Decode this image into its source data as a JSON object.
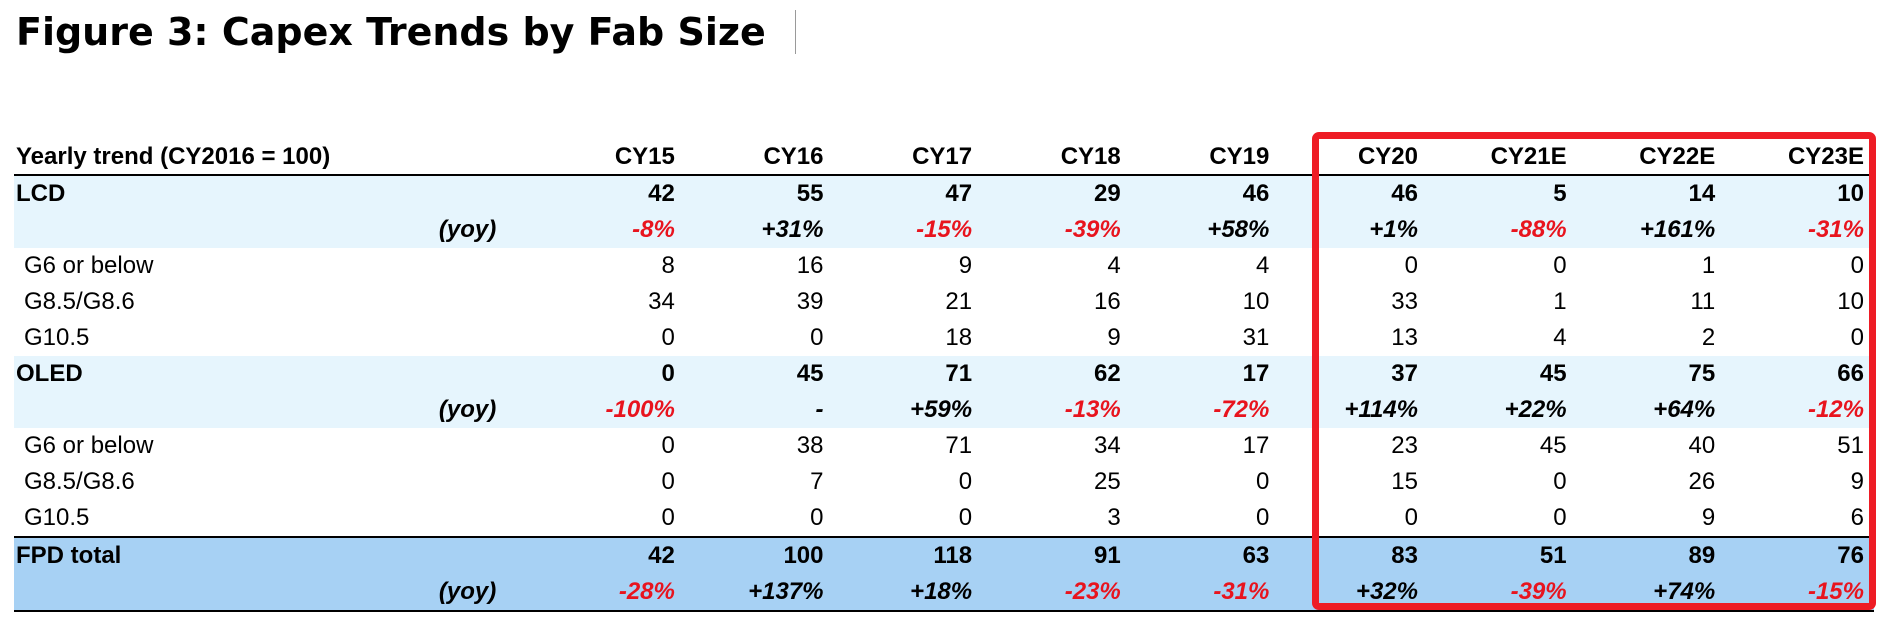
{
  "figure_title": "Figure 3: Capex Trends by Fab Size",
  "colors": {
    "negative": "#e8141e",
    "positive": "#000000",
    "band": "#e6f5fd",
    "band_total": "#a7d1f4",
    "highlight": "#ee1c25"
  },
  "table": {
    "header_label": "Yearly trend (CY2016 = 100)",
    "columns": [
      "CY15",
      "CY16",
      "CY17",
      "CY18",
      "CY19",
      "CY20",
      "CY21E",
      "CY22E",
      "CY23E"
    ],
    "lcd": {
      "label": "LCD",
      "values": [
        "42",
        "55",
        "47",
        "29",
        "46",
        "46",
        "5",
        "14",
        "10"
      ],
      "yoy_label": "(yoy)",
      "yoy": [
        "-8%",
        "+31%",
        "-15%",
        "-39%",
        "+58%",
        "+1%",
        "-88%",
        "+161%",
        "-31%"
      ],
      "rows": [
        {
          "label": "G6 or below",
          "values": [
            "8",
            "16",
            "9",
            "4",
            "4",
            "0",
            "0",
            "1",
            "0"
          ]
        },
        {
          "label": "G8.5/G8.6",
          "values": [
            "34",
            "39",
            "21",
            "16",
            "10",
            "33",
            "1",
            "11",
            "10"
          ]
        },
        {
          "label": "G10.5",
          "values": [
            "0",
            "0",
            "18",
            "9",
            "31",
            "13",
            "4",
            "2",
            "0"
          ]
        }
      ]
    },
    "oled": {
      "label": "OLED",
      "values": [
        "0",
        "45",
        "71",
        "62",
        "17",
        "37",
        "45",
        "75",
        "66"
      ],
      "yoy_label": "(yoy)",
      "yoy": [
        "-100%",
        "-",
        "+59%",
        "-13%",
        "-72%",
        "+114%",
        "+22%",
        "+64%",
        "-12%"
      ],
      "rows": [
        {
          "label": "G6 or below",
          "values": [
            "0",
            "38",
            "71",
            "34",
            "17",
            "23",
            "45",
            "40",
            "51"
          ]
        },
        {
          "label": "G8.5/G8.6",
          "values": [
            "0",
            "7",
            "0",
            "25",
            "0",
            "15",
            "0",
            "26",
            "9"
          ]
        },
        {
          "label": "G10.5",
          "values": [
            "0",
            "0",
            "0",
            "3",
            "0",
            "0",
            "0",
            "9",
            "6"
          ]
        }
      ]
    },
    "fpd": {
      "label": "FPD total",
      "values": [
        "42",
        "100",
        "118",
        "91",
        "63",
        "83",
        "51",
        "89",
        "76"
      ],
      "yoy_label": "(yoy)",
      "yoy": [
        "-28%",
        "+137%",
        "+18%",
        "-23%",
        "-31%",
        "+32%",
        "-39%",
        "+74%",
        "-15%"
      ]
    }
  }
}
